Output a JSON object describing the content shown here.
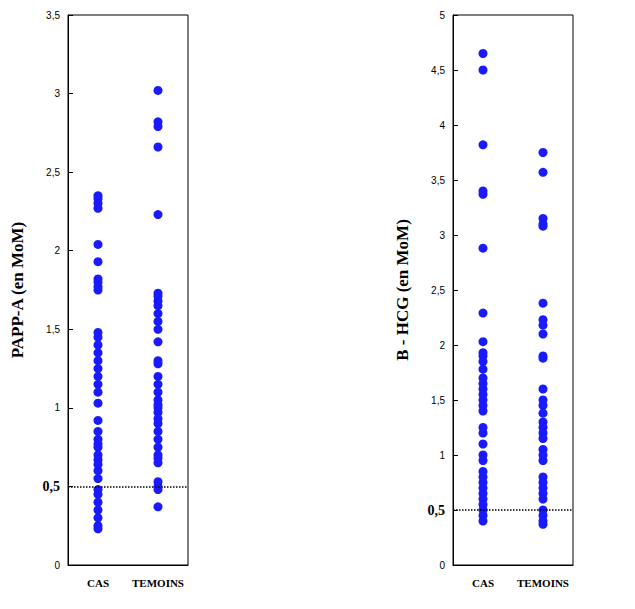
{
  "chart_data": [
    {
      "type": "scatter",
      "y_label": "PAPP-A (en MoM)",
      "categories": [
        "CAS",
        "TEMOINS"
      ],
      "values": [
        [
          2.35,
          2.33,
          2.3,
          2.27,
          2.04,
          1.93,
          1.82,
          1.8,
          1.77,
          1.75,
          1.48,
          1.45,
          1.4,
          1.35,
          1.3,
          1.25,
          1.2,
          1.15,
          1.1,
          1.03,
          0.92,
          0.85,
          0.8,
          0.77,
          0.75,
          0.7,
          0.67,
          0.64,
          0.6,
          0.55,
          0.48,
          0.45,
          0.4,
          0.35,
          0.3,
          0.25,
          0.23
        ],
        [
          3.02,
          2.82,
          2.79,
          2.66,
          2.23,
          1.73,
          1.71,
          1.68,
          1.65,
          1.6,
          1.55,
          1.5,
          1.42,
          1.3,
          1.28,
          1.2,
          1.15,
          1.1,
          1.05,
          1.02,
          1.0,
          0.97,
          0.93,
          0.9,
          0.85,
          0.8,
          0.75,
          0.7,
          0.68,
          0.65,
          0.53,
          0.5,
          0.48,
          0.37
        ]
      ],
      "color": "#1a1aff",
      "marker": "circle",
      "ylim": [
        0,
        3.5
      ],
      "yticks": [
        0,
        {
          "value": 0.5,
          "label": "0,5"
        },
        1,
        {
          "value": 1.5,
          "label": "1,5"
        },
        2,
        {
          "value": 2.5,
          "label": "2,5"
        },
        3,
        {
          "value": 3.5,
          "label": "3,5"
        }
      ],
      "reference_line": {
        "value": 0.5,
        "line_style": "dotted"
      },
      "grid": false
    },
    {
      "type": "scatter",
      "y_label": "B - HCG (en MoM)",
      "categories": [
        "CAS",
        "TEMOINS"
      ],
      "values": [
        [
          4.65,
          4.5,
          3.82,
          3.4,
          3.37,
          2.88,
          2.29,
          2.03,
          1.93,
          1.9,
          1.85,
          1.78,
          1.7,
          1.65,
          1.6,
          1.55,
          1.5,
          1.45,
          1.4,
          1.25,
          1.2,
          1.1,
          1.0,
          0.95,
          0.85,
          0.8,
          0.75,
          0.7,
          0.65,
          0.6,
          0.55,
          0.5,
          0.45,
          0.4
        ],
        [
          3.75,
          3.57,
          3.15,
          3.1,
          3.08,
          2.38,
          2.23,
          2.18,
          2.1,
          1.9,
          1.88,
          1.6,
          1.5,
          1.45,
          1.38,
          1.3,
          1.25,
          1.2,
          1.15,
          1.05,
          1.0,
          0.95,
          0.8,
          0.75,
          0.7,
          0.65,
          0.6,
          0.5,
          0.45,
          0.4,
          0.37
        ]
      ],
      "color": "#1a1aff",
      "marker": "circle",
      "ylim": [
        0,
        5
      ],
      "yticks": [
        0,
        {
          "value": 0.5,
          "label": "0,5"
        },
        1,
        {
          "value": 1.5,
          "label": "1,5"
        },
        2,
        {
          "value": 2.5,
          "label": "2,5"
        },
        3,
        {
          "value": 3.5,
          "label": "3,5"
        },
        4,
        {
          "value": 4.5,
          "label": "4,5"
        },
        5
      ],
      "reference_line": {
        "value": 0.5,
        "line_style": "dotted"
      },
      "grid": false
    }
  ]
}
